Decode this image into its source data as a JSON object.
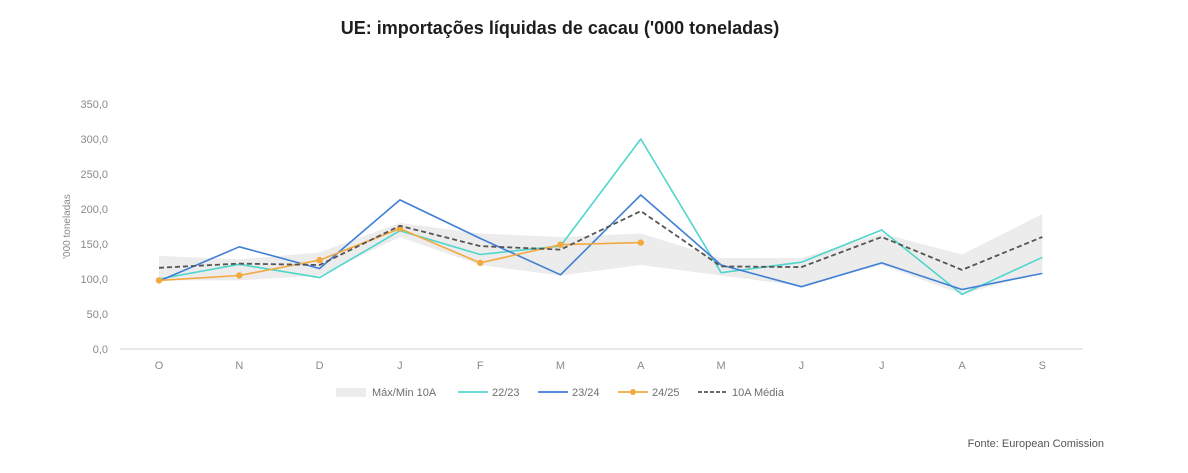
{
  "chart_data": {
    "type": "line",
    "title": "UE: importações líquidas de cacau ('000 toneladas)",
    "ylabel": "'000 toneladas",
    "xlabel": "",
    "ylim": [
      0,
      350
    ],
    "yticks": [
      "0,0",
      "50,0",
      "100,0",
      "150,0",
      "200,0",
      "250,0",
      "300,0",
      "350,0"
    ],
    "yticks_values": [
      0,
      50,
      100,
      150,
      200,
      250,
      300,
      350
    ],
    "categories": [
      "O",
      "N",
      "D",
      "J",
      "F",
      "M",
      "A",
      "M",
      "J",
      "J",
      "A",
      "S"
    ],
    "band": {
      "name": "Máx/Min 10A",
      "color": "#ececec",
      "max": [
        133,
        128,
        138,
        180,
        165,
        160,
        165,
        130,
        130,
        165,
        135,
        193
      ],
      "min": [
        98,
        98,
        105,
        160,
        120,
        105,
        120,
        105,
        90,
        120,
        78,
        110
      ]
    },
    "series": [
      {
        "name": "22/23",
        "color": "#4fd6cc",
        "style": "solid",
        "markers": false,
        "values": [
          100,
          121,
          102,
          169,
          135,
          147,
          300,
          109,
          124,
          170,
          78,
          131
        ]
      },
      {
        "name": "23/24",
        "color": "#3f7fd6",
        "style": "solid",
        "markers": false,
        "values": [
          97,
          146,
          115,
          213,
          158,
          106,
          220,
          120,
          89,
          123,
          85,
          108
        ]
      },
      {
        "name": "24/25",
        "color": "#f2a93f",
        "style": "solid",
        "markers": true,
        "values": [
          98,
          105,
          127,
          172,
          123,
          149,
          152,
          null,
          null,
          null,
          null,
          null
        ]
      },
      {
        "name": "10A Média",
        "color": "#555555",
        "style": "dashed",
        "markers": false,
        "values": [
          116,
          122,
          120,
          176,
          147,
          142,
          197,
          118,
          117,
          160,
          113,
          160
        ]
      }
    ],
    "legend_position": "bottom",
    "grid": false
  },
  "source": "Fonte: European Comission"
}
